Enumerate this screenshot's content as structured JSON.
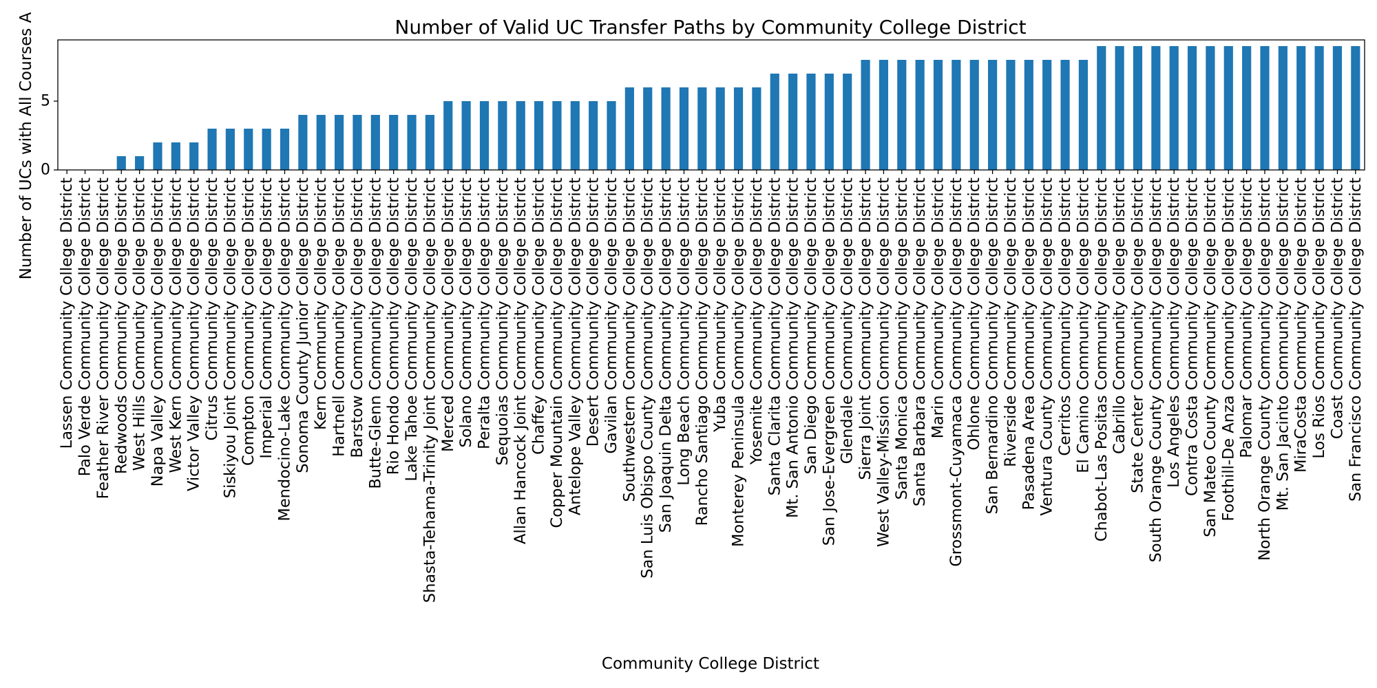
{
  "chart_data": {
    "type": "bar",
    "title": "Number of Valid UC Transfer Paths by Community College District",
    "xlabel": "Community College District",
    "ylabel": "Number of UCs with All Courses A",
    "ylim": [
      0,
      9.45
    ],
    "yticks": [
      0,
      5
    ],
    "grid": false,
    "legend": "none",
    "bar_color": "#1f77b4",
    "categories": [
      "Lassen Community College District",
      "Palo Verde Community College District",
      "Feather River Community College District",
      "Redwoods Community College District",
      "West Hills Community College District",
      "Napa Valley Community College District",
      "West Kern Community College District",
      "Victor Valley Community College District",
      "Citrus Community College District",
      "Siskiyou Joint Community College District",
      "Compton Community College District",
      "Imperial Community College District",
      "Mendocino-Lake Community College District",
      "Sonoma County Junior College District",
      "Kern Community College District",
      "Hartnell Community College District",
      "Barstow Community College District",
      "Butte-Glenn Community College District",
      "Rio Hondo Community College District",
      "Lake Tahoe Community College District",
      "Shasta-Tehama-Trinity Joint Community College District",
      "Merced Community College District",
      "Solano Community College District",
      "Peralta Community College District",
      "Sequoias Community College District",
      "Allan Hancock Joint Community College District",
      "Chaffey Community College District",
      "Copper Mountain Community College District",
      "Antelope Valley Community College District",
      "Desert Community College District",
      "Gavilan Community College District",
      "Southwestern Community College District",
      "San Luis Obispo County Community College District",
      "San Joaquin Delta Community College District",
      "Long Beach Community College District",
      "Rancho Santiago Community College District",
      "Yuba Community College District",
      "Monterey Peninsula Community College District",
      "Yosemite Community College District",
      "Santa Clarita Community College District",
      "Mt. San Antonio Community College District",
      "San Diego Community College District",
      "San Jose-Evergreen Community College District",
      "Glendale Community College District",
      "Sierra Joint Community College District",
      "West Valley-Mission Community College District",
      "Santa Monica Community College District",
      "Santa Barbara Community College District",
      "Marin Community College District",
      "Grossmont-Cuyamaca Community College District",
      "Ohlone Community College District",
      "San Bernardino Community College District",
      "Riverside Community College District",
      "Pasadena Area Community College District",
      "Ventura County Community College District",
      "Cerritos Community College District",
      "El Camino Community College District",
      "Chabot-Las Positas Community College District",
      "Cabrillo Community College District",
      "State Center Community College District",
      "South Orange County Community College District",
      "Los Angeles Community College District",
      "Contra Costa Community College District",
      "San Mateo County Community College District",
      "Foothill-De Anza Community College District",
      "Palomar Community College District",
      "North Orange County Community College District",
      "Mt. San Jacinto Community College District",
      "MiraCosta Community College District",
      "Los Rios Community College District",
      "Coast Community College District",
      "San Francisco Community College District"
    ],
    "values": [
      0,
      0,
      0,
      1,
      1,
      2,
      2,
      2,
      3,
      3,
      3,
      3,
      3,
      4,
      4,
      4,
      4,
      4,
      4,
      4,
      4,
      5,
      5,
      5,
      5,
      5,
      5,
      5,
      5,
      5,
      5,
      6,
      6,
      6,
      6,
      6,
      6,
      6,
      6,
      7,
      7,
      7,
      7,
      7,
      8,
      8,
      8,
      8,
      8,
      8,
      8,
      8,
      8,
      8,
      8,
      8,
      8,
      9,
      9,
      9,
      9,
      9,
      9,
      9,
      9,
      9,
      9,
      9,
      9,
      9,
      9,
      9
    ]
  }
}
